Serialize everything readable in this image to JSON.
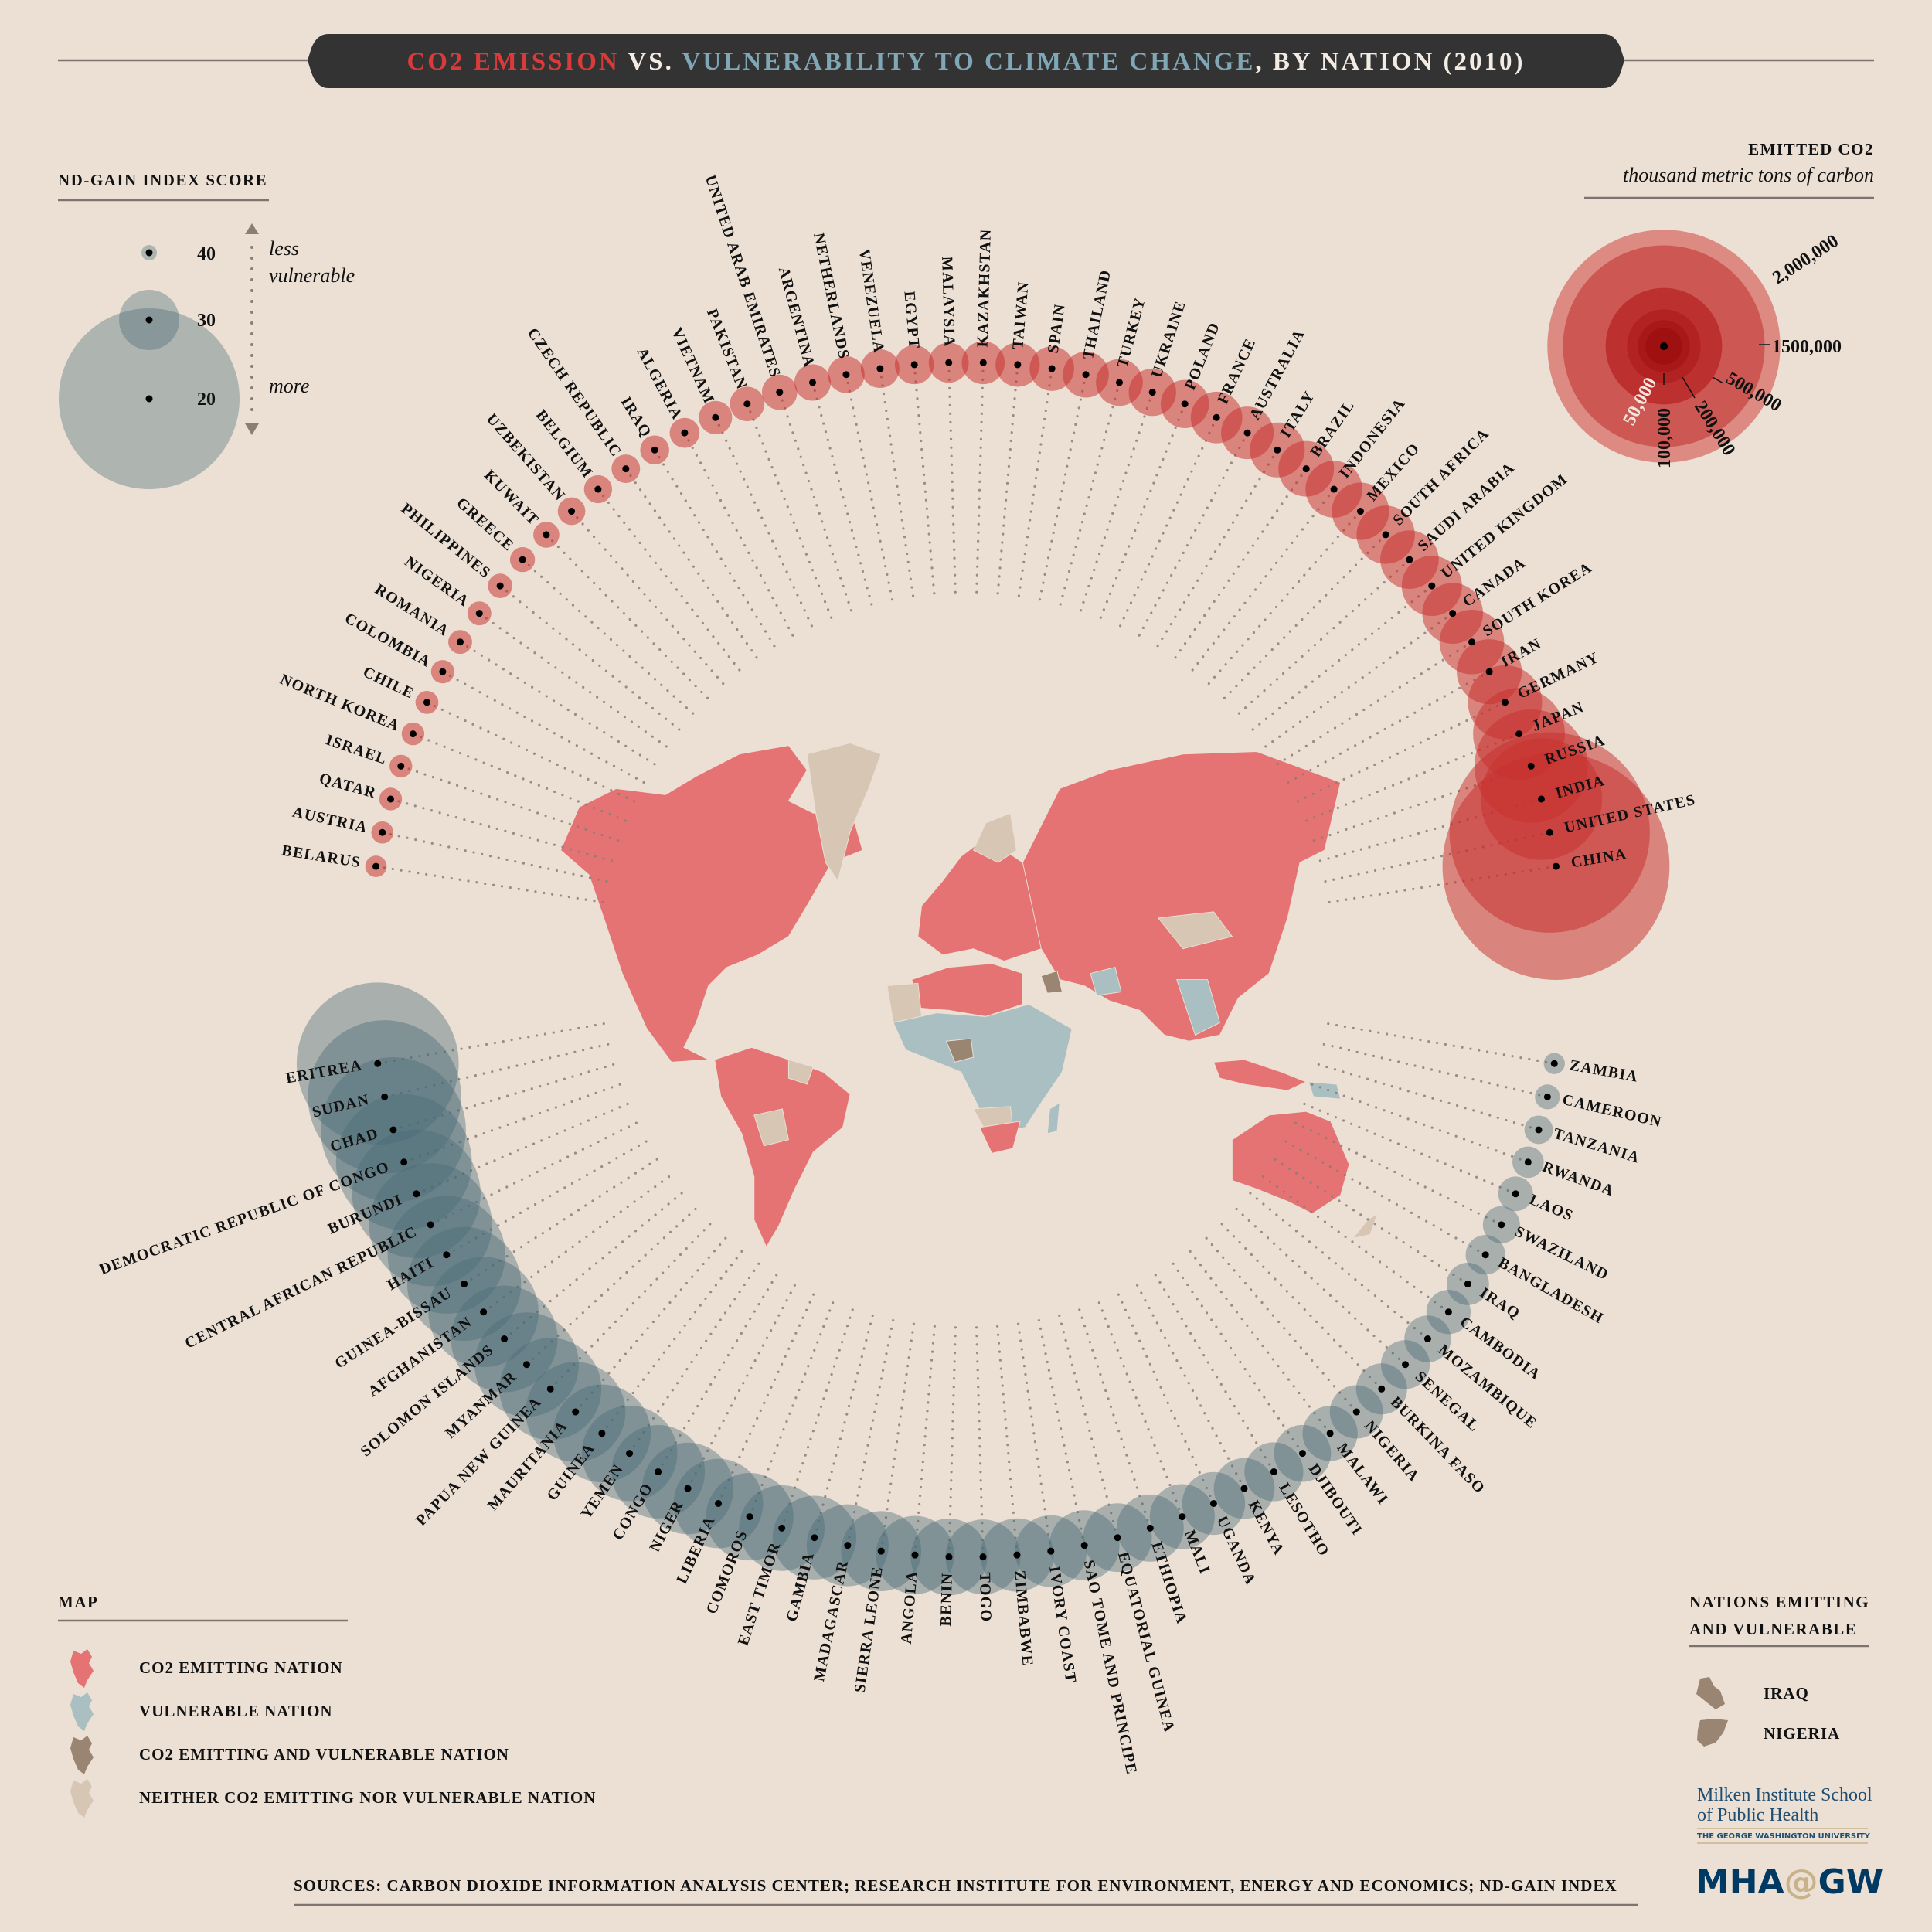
{
  "title": {
    "part1": "CO2 EMISSION",
    "part2": " VS. ",
    "part3": "VULNERABILITY TO CLIMATE CHANGE",
    "part4": ", BY NATION (2010)"
  },
  "colors": {
    "background": "#ece0d4",
    "title_bar": "#333333",
    "emission_red": "#d93a3a",
    "vulnerability_blue": "#7fa7b5",
    "emitter_bubble": "#c8302e",
    "vulnerable_bubble": "#4a6c76",
    "map_emitting": "#e57373",
    "map_vulnerable": "#a9bfc2",
    "map_both": "#9a8472",
    "map_neither": "#d8c6b4",
    "logo_blue": "#003a63",
    "logo_gold": "#c8b28a"
  },
  "legend_gain": {
    "title": "ND-GAIN INDEX SCORE",
    "scores": [
      "40",
      "30",
      "20"
    ],
    "less": "less",
    "vulnerable": "vulnerable",
    "more": "more"
  },
  "legend_co2": {
    "title": "EMITTED CO2",
    "unit": "thousand metric tons of carbon",
    "levels": [
      {
        "value": 2000000,
        "label": "2,000,000",
        "color": "#dc8a82"
      },
      {
        "value": 1500000,
        "label": "1500,000",
        "color": "#cd5752"
      },
      {
        "value": 500000,
        "label": "500,000",
        "color": "#bd3030"
      },
      {
        "value": 200000,
        "label": "200,000",
        "color": "#b22222"
      },
      {
        "value": 100000,
        "label": "100,000",
        "color": "#a91818"
      },
      {
        "value": 50000,
        "label": "50,000",
        "color": "#9f1010"
      }
    ]
  },
  "map_legend": {
    "title": "MAP",
    "items": [
      {
        "label": "CO2 EMITTING NATION",
        "color": "#e57373"
      },
      {
        "label": "VULNERABLE NATION",
        "color": "#a9bfc2"
      },
      {
        "label": "CO2 EMITTING AND VULNERABLE NATION",
        "color": "#9a8472"
      },
      {
        "label": "NEITHER CO2 EMITTING NOR VULNERABLE NATION",
        "color": "#d8c6b4"
      }
    ]
  },
  "both_legend": {
    "title_line1": "NATIONS EMITTING",
    "title_line2": "AND VULNERABLE",
    "items": [
      "IRAQ",
      "NIGERIA"
    ]
  },
  "logo": {
    "line1": "Milken Institute School",
    "line2": "of Public Health",
    "line3": "THE GEORGE WASHINGTON UNIVERSITY",
    "mha": "MHA",
    "at": "@",
    "gw": "GW"
  },
  "sources": "SOURCES: CARBON DIOXIDE INFORMATION ANALYSIS CENTER; RESEARCH INSTITUTE FOR ENVIRONMENT, ENERGY AND ECONOMICS; ND-GAIN INDEX",
  "chart_data": [
    {
      "type": "scatter",
      "name": "EMITTED CO2",
      "unit": "thousand metric tons of carbon",
      "categories": [
        "BELARUS",
        "AUSTRIA",
        "QATAR",
        "ISRAEL",
        "NORTH KOREA",
        "CHILE",
        "COLOMBIA",
        "ROMANIA",
        "NIGERIA",
        "PHILIPPINES",
        "GREECE",
        "KUWAIT",
        "UZBEKISTAN",
        "BELGIUM",
        "CZECH REPUBLIC",
        "IRAQ",
        "ALGERIA",
        "VIETNAM",
        "PAKISTAN",
        "UNITED ARAB EMIRATES",
        "ARGENTINA",
        "NETHERLANDS",
        "VENEZUELA",
        "EGYPT",
        "MALAYSIA",
        "KAZAKHSTAN",
        "TAIWAN",
        "SPAIN",
        "THAILAND",
        "TURKEY",
        "UKRAINE",
        "POLAND",
        "FRANCE",
        "AUSTRALIA",
        "ITALY",
        "BRAZIL",
        "INDONESIA",
        "MEXICO",
        "SOUTH AFRICA",
        "SAUDI ARABIA",
        "UNITED KINGDOM",
        "CANADA",
        "SOUTH KOREA",
        "IRAN",
        "GERMANY",
        "JAPAN",
        "RUSSIA",
        "INDIA",
        "UNITED STATES",
        "CHINA"
      ],
      "values": [
        17000,
        18000,
        19000,
        19000,
        19000,
        19500,
        20000,
        21000,
        21000,
        22000,
        23000,
        25000,
        28000,
        29000,
        30000,
        31000,
        33000,
        41000,
        44000,
        46000,
        49000,
        50000,
        55000,
        56000,
        59000,
        68000,
        72000,
        73000,
        78000,
        81000,
        83000,
        86000,
        98000,
        102000,
        111000,
        114000,
        119000,
        121000,
        125000,
        126000,
        134000,
        136000,
        154000,
        156000,
        203000,
        311000,
        474000,
        545000,
        1480000,
        1900000
      ]
    },
    {
      "type": "scatter",
      "name": "ND-GAIN INDEX SCORE",
      "categories": [
        "ZAMBIA",
        "CAMEROON",
        "TANZANIA",
        "RWANDA",
        "LAOS",
        "SWAZILAND",
        "BANGLADESH",
        "IRAQ",
        "CAMBODIA",
        "MOZAMBIQUE",
        "SENEGAL",
        "BURKINA FASO",
        "NIGERIA",
        "MALAWI",
        "DJIBOUTI",
        "LESOTHO",
        "KENYA",
        "UGANDA",
        "MALI",
        "ETHIOPIA",
        "EQUATORIAL GUINEA",
        "SAO TOME AND PRINCIPE",
        "IVORY COAST",
        "ZIMBABWE",
        "TOGO",
        "BENIN",
        "ANGOLA",
        "SIERRA LEONE",
        "MADAGASCAR",
        "GAMBIA",
        "EAST TIMOR",
        "COMOROS",
        "LIBERIA",
        "NIGER",
        "CONGO",
        "YEMEN",
        "GUINEA",
        "MAURITANIA",
        "PAPUA NEW GUINEA",
        "MYANMAR",
        "SOLOMON ISLANDS",
        "AFGHANISTAN",
        "GUINEA-BISSAU",
        "HAITI",
        "CENTRAL AFRICAN REPUBLIC",
        "BURUNDI",
        "DEMOCRATIC REPUBLIC OF CONGO",
        "CHAD",
        "SUDAN",
        "ERITREA"
      ],
      "values": [
        39.5,
        38.0,
        36.8,
        35.9,
        35.0,
        34.4,
        33.8,
        33.2,
        32.8,
        32.3,
        31.9,
        31.5,
        31.1,
        30.8,
        30.5,
        30.2,
        29.9,
        29.6,
        29.3,
        29.0,
        28.8,
        28.6,
        28.4,
        28.2,
        28.0,
        27.8,
        27.6,
        27.4,
        27.2,
        27.0,
        26.8,
        26.6,
        26.4,
        26.2,
        26.0,
        25.8,
        25.6,
        25.4,
        25.2,
        25.0,
        24.8,
        24.5,
        24.2,
        23.9,
        23.5,
        23.1,
        22.6,
        22.0,
        21.5,
        21.0
      ]
    }
  ]
}
